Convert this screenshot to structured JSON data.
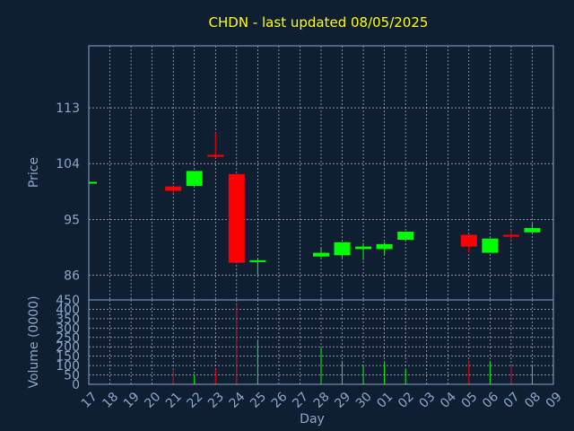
{
  "chart_data": {
    "type": "candlestick",
    "title": "CHDN - last updated 08/05/2025",
    "xlabel": "Day",
    "ylabel_price": "Price",
    "ylabel_volume": "Volume (0000)",
    "x_ticks": [
      "17",
      "18",
      "19",
      "20",
      "21",
      "22",
      "23",
      "24",
      "25",
      "26",
      "27",
      "28",
      "29",
      "30",
      "01",
      "02",
      "03",
      "04",
      "05",
      "06",
      "07",
      "08",
      "09"
    ],
    "price_ticks": [
      86,
      95,
      104,
      113
    ],
    "price_ylim": [
      82,
      123
    ],
    "volume_ticks": [
      0,
      50,
      100,
      150,
      200,
      250,
      300,
      350,
      400,
      450
    ],
    "volume_ylim": [
      0,
      450
    ],
    "grid": true,
    "colors": {
      "up": "#00ff00",
      "down": "#ff0000",
      "title": "#ffff00",
      "axis": "#8aa8cc",
      "background": "#0f1e30"
    },
    "candles": [
      {
        "day": "17",
        "open": 100.9,
        "close": 100.9,
        "high": 100.9,
        "low": 100.9,
        "volume": 0
      },
      {
        "day": "21",
        "open": 100.3,
        "close": 99.6,
        "high": 100.3,
        "low": 99.2,
        "volume": 80
      },
      {
        "day": "22",
        "open": 100.4,
        "close": 102.8,
        "high": 102.8,
        "low": 100.4,
        "volume": 50
      },
      {
        "day": "23",
        "open": 105.4,
        "close": 105.1,
        "high": 109.0,
        "low": 104.9,
        "volume": 80
      },
      {
        "day": "24",
        "open": 102.3,
        "close": 88.0,
        "high": 102.3,
        "low": 88.0,
        "volume": 425
      },
      {
        "day": "25",
        "open": 88.1,
        "close": 88.4,
        "high": 88.6,
        "low": 86.0,
        "volume": 230
      },
      {
        "day": "28",
        "open": 89.0,
        "close": 89.6,
        "high": 90.3,
        "low": 88.7,
        "volume": 195
      },
      {
        "day": "29",
        "open": 89.2,
        "close": 91.3,
        "high": 91.3,
        "low": 88.8,
        "volume": 125
      },
      {
        "day": "30",
        "open": 90.2,
        "close": 90.6,
        "high": 91.2,
        "low": 88.4,
        "volume": 105
      },
      {
        "day": "01",
        "open": 90.2,
        "close": 91.0,
        "high": 91.3,
        "low": 89.4,
        "volume": 115
      },
      {
        "day": "02",
        "open": 91.7,
        "close": 93.0,
        "high": 93.0,
        "low": 91.7,
        "volume": 80
      },
      {
        "day": "05",
        "open": 92.5,
        "close": 90.6,
        "high": 92.5,
        "low": 89.6,
        "volume": 120
      },
      {
        "day": "06",
        "open": 89.6,
        "close": 91.9,
        "high": 91.9,
        "low": 89.6,
        "volume": 120
      },
      {
        "day": "07",
        "open": 92.5,
        "close": 92.2,
        "high": 93.2,
        "low": 91.6,
        "volume": 100
      },
      {
        "day": "08",
        "open": 92.9,
        "close": 93.6,
        "high": 94.3,
        "low": 92.9,
        "volume": 100
      }
    ]
  }
}
